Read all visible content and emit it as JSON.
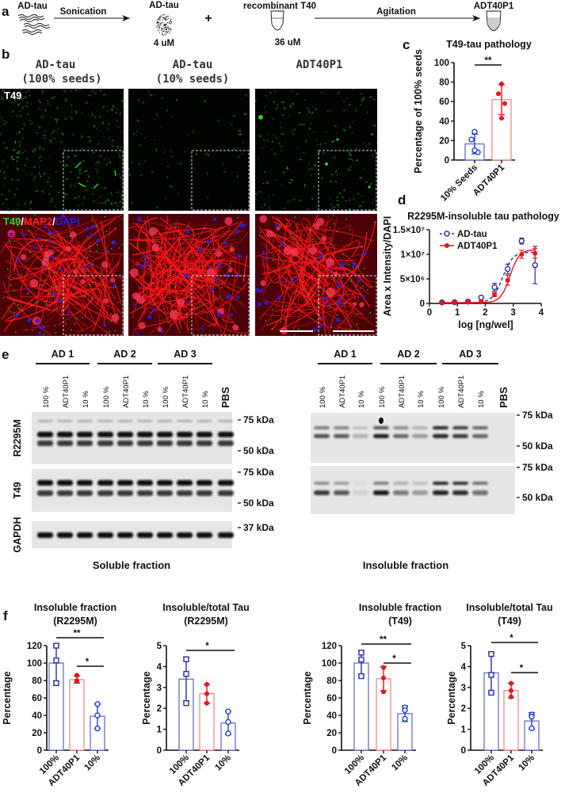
{
  "panel_labels": {
    "a": "a",
    "b": "b",
    "c": "c",
    "d": "d",
    "e": "e",
    "f": "f"
  },
  "scheme": {
    "ad_tau": "AD-tau",
    "sonication": "Sonication",
    "ad_tau_sonicated": "AD-tau",
    "conc_ad_tau": "4 uM",
    "plus": "+",
    "recombinant": "recombinant T40",
    "conc_t40": "36 uM",
    "agitation": "Agitation",
    "product": "ADT40P1"
  },
  "images": {
    "columns": [
      {
        "title": "AD-tau",
        "subtitle": "(100% seeds)"
      },
      {
        "title": "AD-tau",
        "subtitle": "(10% seeds)"
      },
      {
        "title": "ADT40P1",
        "subtitle": ""
      }
    ],
    "top_row_label": "T49",
    "bottom_row_label": {
      "t49": "T49",
      "sep1": "/",
      "map2": "MAP2",
      "sep2": "/",
      "dapi": "DAPI"
    }
  },
  "colors": {
    "ad_tau_blue": "#2b2f9e",
    "open_marker_blue": "#2340d0",
    "adt40p1_red": "#e8141e",
    "bar_100_edge": "#6b6fbf",
    "bar_adt_edge": "#f08a8a",
    "bar_10_edge": "#6a6ae0",
    "t49_green": "#27d427",
    "map2_red": "#ff1a1a",
    "dapi_blue": "#2a1fe0"
  },
  "blots": {
    "groups": [
      "AD 1",
      "AD 2",
      "AD 3"
    ],
    "lanes": [
      "100 %",
      "ADT40P1",
      "10 %",
      "100 %",
      "ADT40P1",
      "10 %",
      "100 %",
      "ADT40P1",
      "10 %",
      "PBS"
    ],
    "soluble": {
      "caption": "Soluble fraction",
      "rows": [
        {
          "antibody": "R2295M",
          "markers": [
            "75 kDa",
            "50 kDa"
          ]
        },
        {
          "antibody": "T49",
          "markers": [
            "75 kDa",
            "50 kDa"
          ]
        },
        {
          "antibody": "GAPDH",
          "markers": [
            "37 kDa"
          ]
        }
      ]
    },
    "insoluble": {
      "caption": "Insoluble fraction",
      "rows": [
        {
          "antibody": "R2295M",
          "markers": [
            "75 kDa",
            "50 kDa"
          ]
        },
        {
          "antibody": "T49",
          "markers": [
            "75 kDa",
            "50 kDa"
          ]
        }
      ]
    }
  },
  "chart_data": [
    {
      "panel": "c",
      "type": "bar",
      "title": "T49-tau pathology",
      "ylabel": "Percentage of 100% seeds",
      "categories": [
        "10% Seeds",
        "ADT40P1"
      ],
      "values": [
        16.5,
        62
      ],
      "sd": [
        10,
        15.5
      ],
      "points": [
        [
          29,
          21,
          8,
          10
        ],
        [
          78,
          68,
          58,
          43
        ]
      ],
      "markers": [
        "open-circle",
        "filled-circle"
      ],
      "ylim": [
        0,
        100
      ],
      "yticks": [
        0,
        20,
        40,
        60,
        80,
        100
      ],
      "significance": [
        {
          "from": 0,
          "to": 1,
          "label": "**"
        }
      ]
    },
    {
      "panel": "d",
      "type": "line",
      "title": "R2295M-insoluble tau pathology",
      "xlabel": "log [ng/wel]",
      "ylabel": "Area x Intensity/DAPI",
      "xlim": [
        0,
        4
      ],
      "xticks": [
        0,
        1,
        2,
        3,
        4
      ],
      "ylim": [
        0,
        15000000
      ],
      "yticks": [
        0,
        5000000,
        10000000,
        15000000
      ],
      "ytick_labels": [
        "0",
        "5×10⁶",
        "1×10⁷",
        "1.5×10⁷"
      ],
      "legend": "top-left",
      "x": [
        0.45,
        0.9,
        1.38,
        1.85,
        2.33,
        2.8,
        3.3,
        3.78
      ],
      "series": [
        {
          "name": "AD-tau",
          "marker": "open-circle",
          "line": "dashed",
          "y": [
            200000,
            250000,
            400000,
            1200000,
            3300000,
            7000000,
            12700000,
            7800000
          ],
          "err": [
            100000,
            100000,
            150000,
            300000,
            800000,
            1000000,
            600000,
            3800000
          ]
        },
        {
          "name": "ADT40P1",
          "marker": "filled-circle",
          "line": "solid",
          "y": [
            100000,
            200000,
            250000,
            400000,
            1800000,
            4700000,
            10000000,
            10200000
          ],
          "err": [
            50000,
            50000,
            100000,
            150000,
            400000,
            1000000,
            800000,
            1000000
          ]
        }
      ]
    },
    {
      "panel": "f",
      "type": "bar",
      "title": [
        "Insoluble fraction",
        "(R2295M)"
      ],
      "ylabel": "Percentage",
      "categories": [
        "100%",
        "ADT40P1",
        "10%"
      ],
      "values": [
        100,
        81,
        39
      ],
      "sd": [
        21,
        4,
        14
      ],
      "points": [
        [
          120,
          103,
          77
        ],
        [
          86,
          80,
          79
        ],
        [
          53,
          40,
          25
        ]
      ],
      "markers": [
        "open-square",
        "filled-circle",
        "open-circle"
      ],
      "ylim": [
        0,
        120
      ],
      "yticks": [
        0,
        20,
        40,
        60,
        80,
        100,
        120
      ],
      "significance": [
        {
          "from": 0,
          "to": 2,
          "label": "**"
        },
        {
          "from": 1,
          "to": 2,
          "label": "*"
        }
      ]
    },
    {
      "panel": "f",
      "type": "bar",
      "title": [
        "Insoluble/total Tau",
        "(R2295M)"
      ],
      "ylabel": "Percentage",
      "categories": [
        "100%",
        "ADT40P1",
        "10%"
      ],
      "values": [
        3.4,
        2.7,
        1.3
      ],
      "sd": [
        1.05,
        0.45,
        0.55
      ],
      "points": [
        [
          4.35,
          3.65,
          2.25
        ],
        [
          3.15,
          2.7,
          2.25
        ],
        [
          1.85,
          1.35,
          0.8
        ]
      ],
      "markers": [
        "open-square",
        "filled-circle",
        "open-circle"
      ],
      "ylim": [
        0,
        5
      ],
      "yticks": [
        0,
        1,
        2,
        3,
        4,
        5
      ],
      "significance": [
        {
          "from": 0,
          "to": 2,
          "label": "*"
        }
      ]
    },
    {
      "panel": "f",
      "type": "bar",
      "title": [
        "Insoluble fraction",
        "(T49)"
      ],
      "ylabel": "Percentage",
      "categories": [
        "100%",
        "ADT40P1",
        "10%"
      ],
      "values": [
        100,
        82,
        42
      ],
      "sd": [
        14,
        14,
        9
      ],
      "points": [
        [
          112,
          104,
          85
        ],
        [
          95,
          83,
          67
        ],
        [
          49,
          46,
          36
        ]
      ],
      "markers": [
        "open-square",
        "filled-circle",
        "open-circle"
      ],
      "ylim": [
        0,
        120
      ],
      "yticks": [
        0,
        20,
        40,
        60,
        80,
        100,
        120
      ],
      "significance": [
        {
          "from": 0,
          "to": 2,
          "label": "**"
        },
        {
          "from": 1,
          "to": 2,
          "label": "*"
        }
      ]
    },
    {
      "panel": "f",
      "type": "bar",
      "title": [
        "Insoluble/total Tau",
        "(T49)"
      ],
      "ylabel": "Percentage",
      "categories": [
        "100%",
        "ADT40P1",
        "10%"
      ],
      "values": [
        3.7,
        2.85,
        1.4
      ],
      "sd": [
        0.95,
        0.35,
        0.4
      ],
      "points": [
        [
          4.6,
          3.6,
          2.75
        ],
        [
          3.2,
          2.85,
          2.55
        ],
        [
          1.7,
          1.6,
          1.05
        ]
      ],
      "markers": [
        "open-square",
        "filled-circle",
        "open-circle"
      ],
      "ylim": [
        0,
        5
      ],
      "yticks": [
        0,
        1,
        2,
        3,
        4,
        5
      ],
      "significance": [
        {
          "from": 0,
          "to": 2,
          "label": "*"
        },
        {
          "from": 1,
          "to": 2,
          "label": "*"
        }
      ]
    }
  ]
}
